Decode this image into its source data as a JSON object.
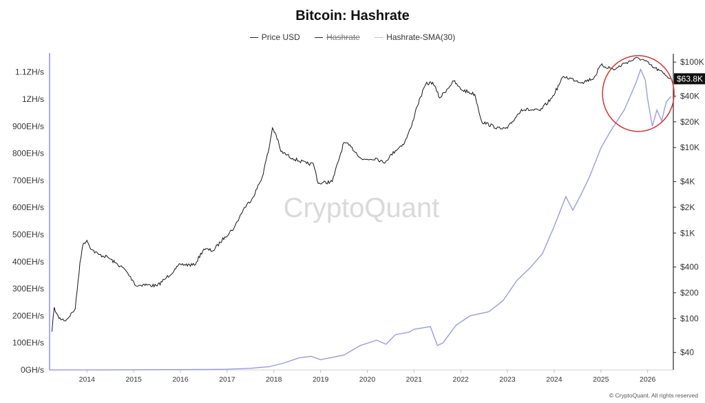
{
  "colors": {
    "price": "#111111",
    "hashrate": "#5a5fc8",
    "sma": "#b8bde6",
    "circle": "#d23232",
    "price_tag_bg": "#111111",
    "axis_left": "#a9a9f0"
  },
  "chart_data": {
    "type": "line",
    "title": "Bitcoin: Hashrate",
    "legend": [
      {
        "label": "Price USD",
        "hidden": false
      },
      {
        "label": "Hashrate",
        "hidden": true
      },
      {
        "label": "Hashrate-SMA(30)",
        "hidden": false
      }
    ],
    "legend_position": "top-center",
    "watermark": "CryptoQuant",
    "footer": "© CryptoQuant. All rights reserved",
    "grid": false,
    "x_axis": {
      "type": "time",
      "range": [
        2013.2,
        2026.55
      ],
      "ticks": [
        "2014",
        "2015",
        "2016",
        "2017",
        "2018",
        "2019",
        "2020",
        "2021",
        "2022",
        "2023",
        "2024",
        "2025",
        "2026"
      ]
    },
    "y_left": {
      "label": "",
      "unit": "EH/s",
      "range": [
        0,
        1150
      ],
      "ticks": [
        {
          "value": 0,
          "label": "0GH/s"
        },
        {
          "value": 100,
          "label": "100EH/s"
        },
        {
          "value": 200,
          "label": "200EH/s"
        },
        {
          "value": 300,
          "label": "300EH/s"
        },
        {
          "value": 400,
          "label": "400EH/s"
        },
        {
          "value": 500,
          "label": "500EH/s"
        },
        {
          "value": 600,
          "label": "600EH/s"
        },
        {
          "value": 700,
          "label": "700EH/s"
        },
        {
          "value": 800,
          "label": "800EH/s"
        },
        {
          "value": 900,
          "label": "900EH/s"
        },
        {
          "value": 1000,
          "label": "1ZH/s"
        },
        {
          "value": 1100,
          "label": "1.1ZH/s"
        }
      ]
    },
    "y_right": {
      "label": "",
      "scale": "log",
      "unit": "USD",
      "range": [
        25,
        110000
      ],
      "ticks": [
        {
          "value": 40,
          "label": "$40"
        },
        {
          "value": 100,
          "label": "$100"
        },
        {
          "value": 200,
          "label": "$200"
        },
        {
          "value": 400,
          "label": "$400"
        },
        {
          "value": 1000,
          "label": "$1K"
        },
        {
          "value": 2000,
          "label": "$2K"
        },
        {
          "value": 4000,
          "label": "$4K"
        },
        {
          "value": 10000,
          "label": "$10K"
        },
        {
          "value": 20000,
          "label": "$20K"
        },
        {
          "value": 40000,
          "label": "$40K"
        },
        {
          "value": 100000,
          "label": "$100K"
        }
      ]
    },
    "current_price_label": {
      "value": 63800,
      "label": "$63.8K"
    },
    "annotation": {
      "type": "circle",
      "center": [
        2025.8,
        90000
      ],
      "note": ""
    },
    "series": [
      {
        "name": "Price USD",
        "axis": "right",
        "x": [
          2013.25,
          2013.3,
          2013.35,
          2013.4,
          2013.55,
          2013.75,
          2013.85,
          2013.92,
          2014.0,
          2014.1,
          2014.25,
          2014.45,
          2014.6,
          2014.8,
          2015.0,
          2015.05,
          2015.2,
          2015.5,
          2015.7,
          2015.9,
          2016.0,
          2016.3,
          2016.5,
          2016.7,
          2016.95,
          2017.15,
          2017.35,
          2017.55,
          2017.75,
          2017.9,
          2017.97,
          2018.05,
          2018.15,
          2018.4,
          2018.7,
          2018.85,
          2018.95,
          2019.25,
          2019.5,
          2019.65,
          2019.9,
          2020.2,
          2020.35,
          2020.6,
          2020.8,
          2020.95,
          2021.05,
          2021.25,
          2021.4,
          2021.55,
          2021.85,
          2022.0,
          2022.3,
          2022.45,
          2022.85,
          2023.0,
          2023.3,
          2023.7,
          2023.95,
          2024.2,
          2024.6,
          2024.85,
          2025.0,
          2025.3,
          2025.5,
          2025.8,
          2025.95,
          2026.1,
          2026.25,
          2026.4,
          2026.5
        ],
        "values": [
          70,
          135,
          115,
          100,
          95,
          130,
          450,
          750,
          820,
          640,
          560,
          520,
          450,
          380,
          270,
          240,
          250,
          240,
          300,
          380,
          430,
          420,
          650,
          620,
          900,
          1150,
          1900,
          2600,
          4500,
          10000,
          17000,
          14000,
          9000,
          7500,
          6500,
          6400,
          3800,
          4000,
          11500,
          10200,
          7200,
          7500,
          6600,
          9200,
          11500,
          18000,
          29000,
          55000,
          58000,
          38000,
          60000,
          48000,
          42000,
          20000,
          16500,
          16800,
          28000,
          27000,
          38000,
          68000,
          58000,
          65000,
          92000,
          82000,
          97000,
          112000,
          103000,
          88000,
          80000,
          69000,
          63800
        ]
      },
      {
        "name": "Hashrate-SMA(30)",
        "axis": "left",
        "x": [
          2013.2,
          2014.0,
          2015.0,
          2016.0,
          2016.6,
          2017.0,
          2017.5,
          2017.9,
          2018.2,
          2018.55,
          2018.8,
          2019.0,
          2019.5,
          2019.85,
          2020.2,
          2020.4,
          2020.6,
          2020.9,
          2021.0,
          2021.35,
          2021.5,
          2021.62,
          2021.9,
          2022.2,
          2022.6,
          2022.9,
          2023.2,
          2023.5,
          2023.75,
          2024.0,
          2024.25,
          2024.4,
          2024.55,
          2024.75,
          2025.0,
          2025.2,
          2025.5,
          2025.75,
          2025.85,
          2025.95,
          2026.0,
          2026.05,
          2026.1,
          2026.2,
          2026.3,
          2026.4,
          2026.5
        ],
        "values": [
          0,
          0.05,
          0.4,
          1.2,
          1.8,
          2.6,
          6,
          12,
          25,
          45,
          50,
          38,
          55,
          90,
          110,
          95,
          130,
          140,
          150,
          160,
          90,
          100,
          165,
          200,
          215,
          255,
          330,
          380,
          430,
          530,
          640,
          590,
          640,
          710,
          820,
          880,
          960,
          1060,
          1110,
          1070,
          1000,
          950,
          900,
          960,
          920,
          990,
          1010
        ]
      }
    ]
  }
}
